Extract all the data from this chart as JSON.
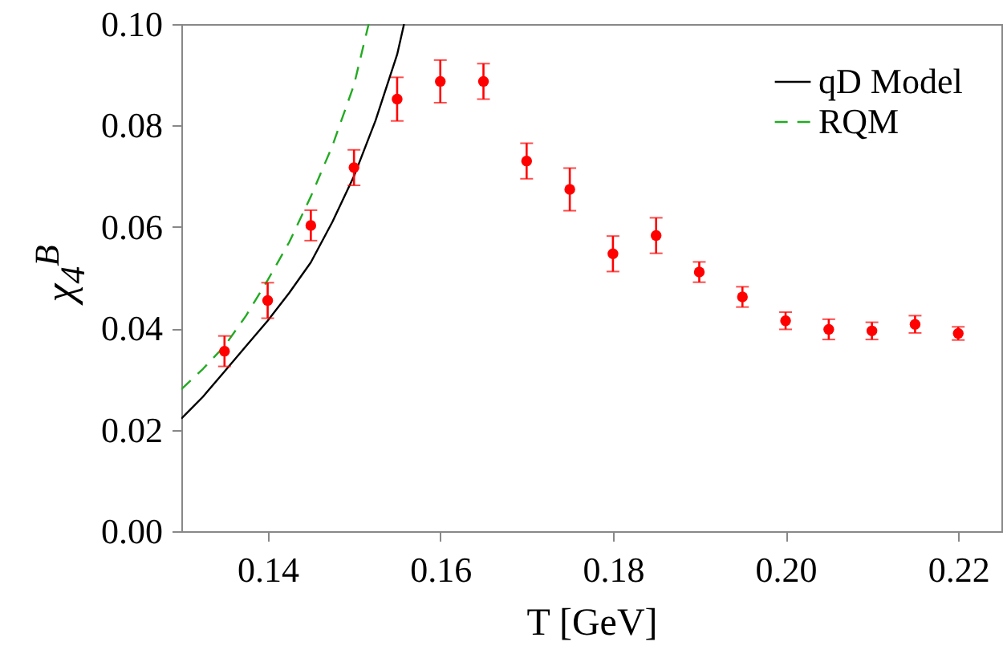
{
  "chart_data": {
    "type": "scatter",
    "xlabel": "T [GeV]",
    "ylabel": "χ$_{4}$$^{B}$",
    "xlim": [
      0.13,
      0.225
    ],
    "ylim": [
      0,
      0.1
    ],
    "xticks": [
      0.14,
      0.16,
      0.18,
      {
        "value": 0.2,
        "label": "0.20"
      },
      0.22
    ],
    "yticks": [
      {
        "value": 0,
        "label": "0.00"
      },
      {
        "value": 0.02,
        "label": "0.02"
      },
      {
        "value": 0.04,
        "label": "0.04"
      },
      {
        "value": 0.06,
        "label": "0.06"
      },
      {
        "value": 0.08,
        "label": "0.08"
      },
      {
        "value": 0.1,
        "label": "0.10"
      }
    ],
    "legend": "top right",
    "grid": false,
    "series": [
      {
        "type": "line",
        "name": "qD Model",
        "color": "#000000",
        "line_style": "solid",
        "x": [
          0.13,
          0.1325,
          0.135,
          0.1375,
          0.14,
          0.1425,
          0.145,
          0.1475,
          0.15,
          0.1525,
          0.155,
          0.1558
        ],
        "values": [
          0.0222,
          0.0265,
          0.0315,
          0.0365,
          0.0415,
          0.047,
          0.053,
          0.061,
          0.07,
          0.081,
          0.094,
          0.1
        ]
      },
      {
        "type": "line",
        "name": "RQM",
        "color": "#22aa22",
        "line_style": "dashed",
        "x": [
          0.13,
          0.1325,
          0.135,
          0.1375,
          0.14,
          0.1425,
          0.145,
          0.1475,
          0.15,
          0.1517
        ],
        "values": [
          0.028,
          0.032,
          0.0365,
          0.0425,
          0.0495,
          0.057,
          0.066,
          0.076,
          0.088,
          0.1
        ]
      },
      {
        "color": "#ff0000",
        "marker": "circle",
        "x": [
          0.135,
          0.14,
          0.145,
          0.15,
          0.155,
          0.16,
          0.165,
          0.17,
          0.175,
          0.18,
          0.185,
          0.19,
          0.195,
          0.2,
          0.205,
          0.21,
          0.215,
          0.22
        ],
        "values": [
          0.0355,
          0.0455,
          0.0603,
          0.0717,
          0.0852,
          0.0887,
          0.0887,
          0.073,
          0.0674,
          0.0547,
          0.0583,
          0.0511,
          0.0462,
          0.0415,
          0.0398,
          0.0395,
          0.0408,
          0.039
        ],
        "errors": [
          0.003,
          0.0035,
          0.003,
          0.0035,
          0.0043,
          0.0042,
          0.0035,
          0.0035,
          0.0042,
          0.0035,
          0.0035,
          0.002,
          0.002,
          0.0017,
          0.002,
          0.0017,
          0.0017,
          0.0013
        ]
      }
    ]
  }
}
